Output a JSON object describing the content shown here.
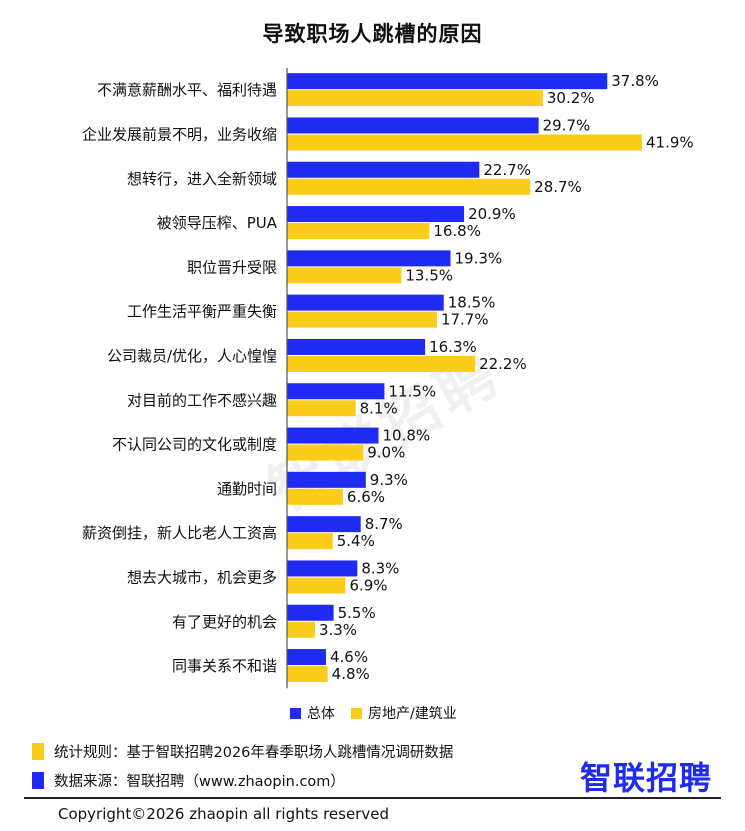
{
  "title": "导致职场人跳槽的原因",
  "colors": {
    "overall": "#1f2bf0",
    "realestate": "#fccc1a",
    "axis": "#555555"
  },
  "legend": {
    "overall": "总体",
    "realestate": "房地产/建筑业"
  },
  "chart_data": {
    "type": "bar",
    "orientation": "horizontal",
    "title": "导致职场人跳槽的原因",
    "categories": [
      "不满意薪酬水平、福利待遇",
      "企业发展前景不明，业务收缩",
      "想转行，进入全新领域",
      "被领导压榨、PUA",
      "职位晋升受限",
      "工作生活平衡严重失衡",
      "公司裁员/优化，人心惶惶",
      "对目前的工作不感兴趣",
      "不认同公司的文化或制度",
      "通勤时间",
      "薪资倒挂，新人比老人工资高",
      "想去大城市，机会更多",
      "有了更好的机会",
      "同事关系不和谐"
    ],
    "series": [
      {
        "name": "总体",
        "values": [
          37.8,
          29.7,
          22.7,
          20.9,
          19.3,
          18.5,
          16.3,
          11.5,
          10.8,
          9.3,
          8.7,
          8.3,
          5.5,
          4.6
        ]
      },
      {
        "name": "房地产/建筑业",
        "values": [
          30.2,
          41.9,
          28.7,
          16.8,
          13.5,
          17.7,
          22.2,
          8.1,
          9.0,
          6.6,
          5.4,
          6.9,
          3.3,
          4.8
        ]
      }
    ],
    "value_labels": [
      [
        "37.8%",
        "29.7%",
        "22.7%",
        "20.9%",
        "19.3%",
        "18.5%",
        "16.3%",
        "11.5%",
        "10.8%",
        "9.3%",
        "8.7%",
        "8.3%",
        "5.5%",
        "4.6%"
      ],
      [
        "30.2%",
        "41.9%",
        "28.7%",
        "16.8%",
        "13.5%",
        "17.7%",
        "22.2%",
        "8.1%",
        "9.0%",
        "6.6%",
        "5.4%",
        "6.9%",
        "3.3%",
        "4.8%"
      ]
    ],
    "xlim": [
      0,
      45
    ],
    "grid": false,
    "legend_position": "bottom"
  },
  "footer": {
    "note_label": "统计规则：基于智联招聘2026年春季职场人跳槽情况调研数据",
    "source_label": "数据来源：智联招聘（www.zhaopin.com）",
    "brand": "智联招聘",
    "copyright": "Copyright©2026 zhaopin all rights reserved"
  },
  "watermark": "智联招聘"
}
